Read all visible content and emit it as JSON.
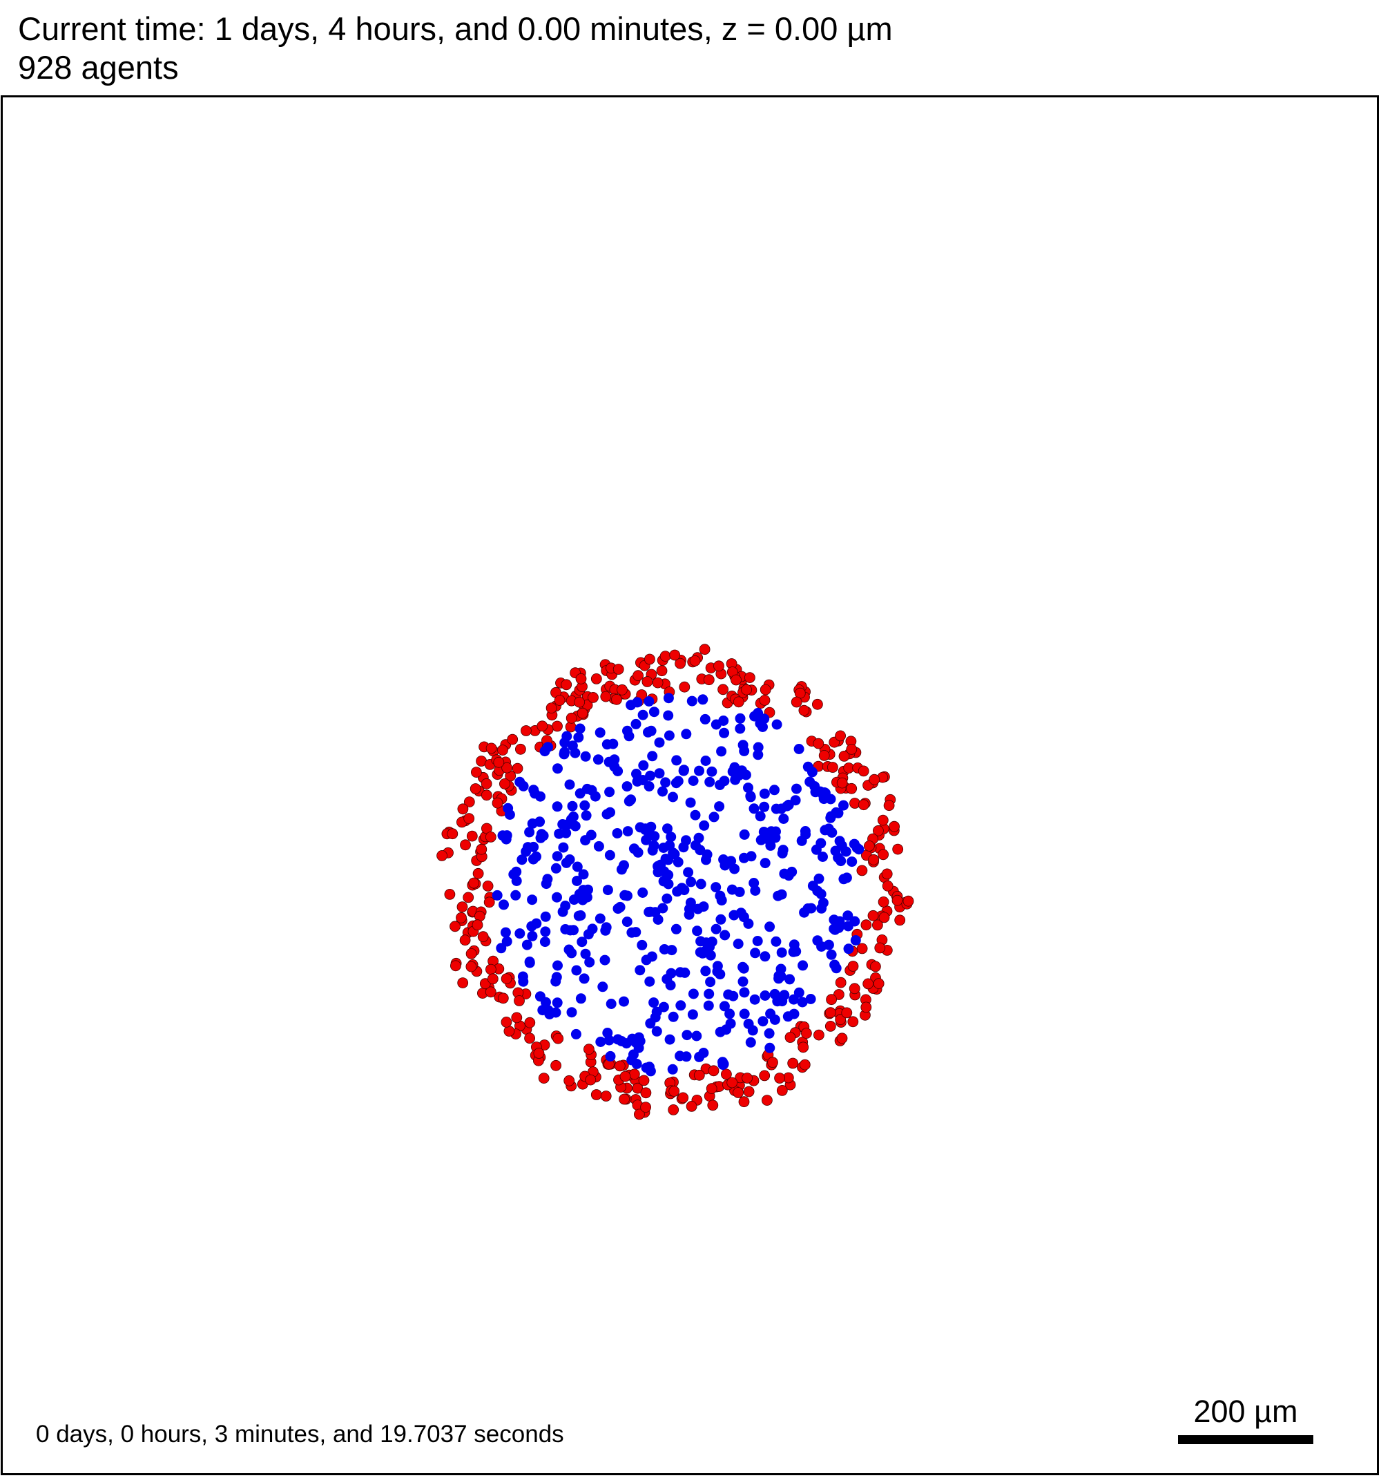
{
  "header": {
    "time_line": "Current time: 1 days, 4 hours, and 0.00 minutes, z = 0.00 µm",
    "agents_line": "928 agents"
  },
  "footer": {
    "elapsed": "0 days, 0 hours, 3 minutes, and 19.7037 seconds",
    "scale_label": "200 µm"
  },
  "colors": {
    "outer_cells": "#ee0000",
    "inner_cells": "#0000ee",
    "cell_outline": "#4a0000",
    "background": "#ffffff"
  },
  "simulation": {
    "agent_count": 928,
    "cell_types": [
      "outer-red",
      "inner-blue"
    ]
  }
}
